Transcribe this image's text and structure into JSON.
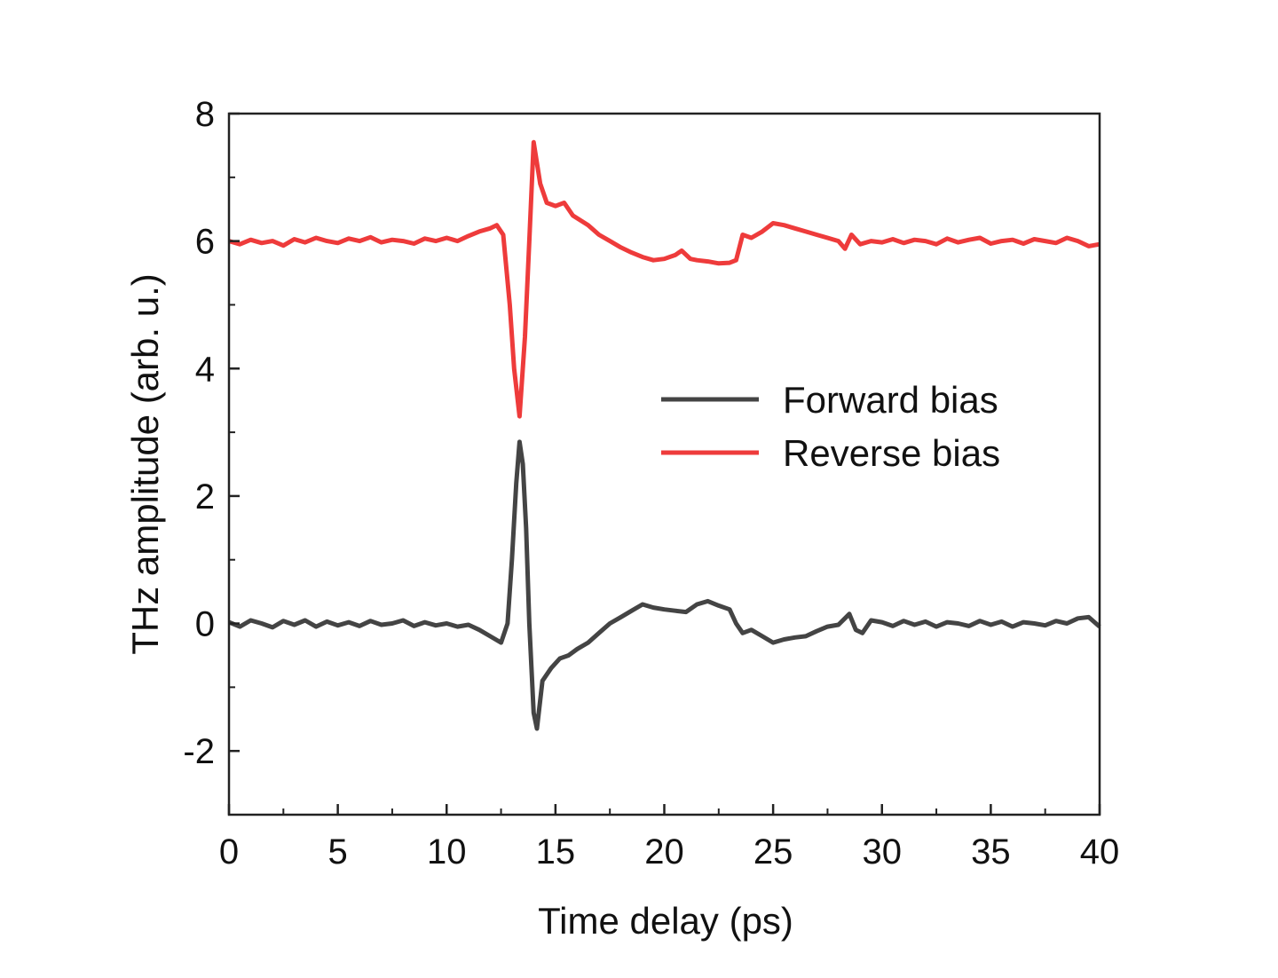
{
  "chart_data": {
    "type": "line",
    "title": "",
    "xlabel": "Time delay (ps)",
    "ylabel": "THz amplitude (arb. u.)",
    "xlim": [
      0,
      40
    ],
    "ylim": [
      -3,
      8
    ],
    "xticks": [
      0,
      5,
      10,
      15,
      20,
      25,
      30,
      35,
      40
    ],
    "yticks": [
      -2,
      0,
      2,
      4,
      6,
      8
    ],
    "grid": false,
    "legend_position": "center-right",
    "series": [
      {
        "name": "Forward bias",
        "color": "#444444",
        "x": [
          0,
          0.5,
          1,
          1.5,
          2,
          2.5,
          3,
          3.5,
          4,
          4.5,
          5,
          5.5,
          6,
          6.5,
          7,
          7.5,
          8,
          8.5,
          9,
          9.5,
          10,
          10.5,
          11,
          11.5,
          12,
          12.5,
          12.8,
          13.0,
          13.2,
          13.35,
          13.5,
          13.65,
          13.8,
          14.0,
          14.15,
          14.4,
          14.8,
          15.2,
          15.6,
          16,
          16.5,
          17,
          17.5,
          18,
          18.5,
          19,
          19.5,
          20,
          20.5,
          21,
          21.5,
          22,
          22.5,
          23,
          23.3,
          23.6,
          24,
          24.5,
          25,
          25.5,
          26,
          26.5,
          27,
          27.5,
          28,
          28.5,
          28.8,
          29.1,
          29.5,
          30,
          30.5,
          31,
          31.5,
          32,
          32.5,
          33,
          33.5,
          34,
          34.5,
          35,
          35.5,
          36,
          36.5,
          37,
          37.5,
          38,
          38.5,
          39,
          39.5,
          40
        ],
        "y": [
          0.02,
          -0.05,
          0.05,
          0.0,
          -0.06,
          0.04,
          -0.02,
          0.05,
          -0.05,
          0.03,
          -0.03,
          0.02,
          -0.04,
          0.04,
          -0.02,
          0.0,
          0.05,
          -0.04,
          0.02,
          -0.03,
          0.0,
          -0.05,
          -0.02,
          -0.1,
          -0.2,
          -0.3,
          0.0,
          1.0,
          2.2,
          2.85,
          2.5,
          1.5,
          0.0,
          -1.4,
          -1.65,
          -0.9,
          -0.7,
          -0.55,
          -0.5,
          -0.4,
          -0.3,
          -0.15,
          0.0,
          0.1,
          0.2,
          0.3,
          0.25,
          0.22,
          0.2,
          0.18,
          0.3,
          0.35,
          0.28,
          0.22,
          0.0,
          -0.15,
          -0.1,
          -0.2,
          -0.3,
          -0.25,
          -0.22,
          -0.2,
          -0.12,
          -0.05,
          -0.02,
          0.15,
          -0.1,
          -0.15,
          0.05,
          0.02,
          -0.04,
          0.04,
          -0.02,
          0.03,
          -0.05,
          0.02,
          0.0,
          -0.04,
          0.04,
          -0.02,
          0.03,
          -0.05,
          0.02,
          0.0,
          -0.03,
          0.04,
          0.0,
          0.08,
          0.1,
          -0.05
        ]
      },
      {
        "name": "Reverse bias",
        "color": "#ee3b3b",
        "x": [
          0,
          0.5,
          1,
          1.5,
          2,
          2.5,
          3,
          3.5,
          4,
          4.5,
          5,
          5.5,
          6,
          6.5,
          7,
          7.5,
          8,
          8.5,
          9,
          9.5,
          10,
          10.5,
          11,
          11.5,
          12,
          12.3,
          12.6,
          12.9,
          13.1,
          13.35,
          13.6,
          13.8,
          14.0,
          14.3,
          14.6,
          15.0,
          15.4,
          15.8,
          16.5,
          17,
          17.5,
          18,
          18.5,
          19,
          19.5,
          20,
          20.5,
          20.8,
          21.2,
          21.5,
          22,
          22.5,
          23,
          23.3,
          23.6,
          24,
          24.5,
          25,
          25.5,
          26,
          26.5,
          27,
          27.5,
          28,
          28.3,
          28.6,
          29,
          29.5,
          30,
          30.5,
          31,
          31.5,
          32,
          32.5,
          33,
          33.5,
          34,
          34.5,
          35,
          35.5,
          36,
          36.5,
          37,
          37.5,
          38,
          38.5,
          39,
          39.5,
          40
        ],
        "y": [
          6.0,
          5.95,
          6.02,
          5.97,
          6.0,
          5.93,
          6.03,
          5.98,
          6.05,
          6.0,
          5.97,
          6.04,
          6.0,
          6.06,
          5.98,
          6.02,
          6.0,
          5.96,
          6.04,
          6.0,
          6.05,
          6.0,
          6.08,
          6.15,
          6.2,
          6.25,
          6.1,
          5.0,
          4.0,
          3.25,
          4.5,
          6.0,
          7.55,
          6.9,
          6.6,
          6.55,
          6.6,
          6.4,
          6.25,
          6.1,
          6.0,
          5.9,
          5.82,
          5.75,
          5.7,
          5.72,
          5.78,
          5.85,
          5.72,
          5.7,
          5.68,
          5.65,
          5.66,
          5.7,
          6.1,
          6.05,
          6.15,
          6.28,
          6.25,
          6.2,
          6.15,
          6.1,
          6.05,
          6.0,
          5.88,
          6.1,
          5.95,
          6.0,
          5.98,
          6.03,
          5.97,
          6.02,
          6.0,
          5.95,
          6.04,
          5.98,
          6.02,
          6.05,
          5.96,
          6.0,
          6.02,
          5.96,
          6.03,
          6.0,
          5.97,
          6.05,
          6.0,
          5.92,
          5.95
        ]
      }
    ]
  }
}
